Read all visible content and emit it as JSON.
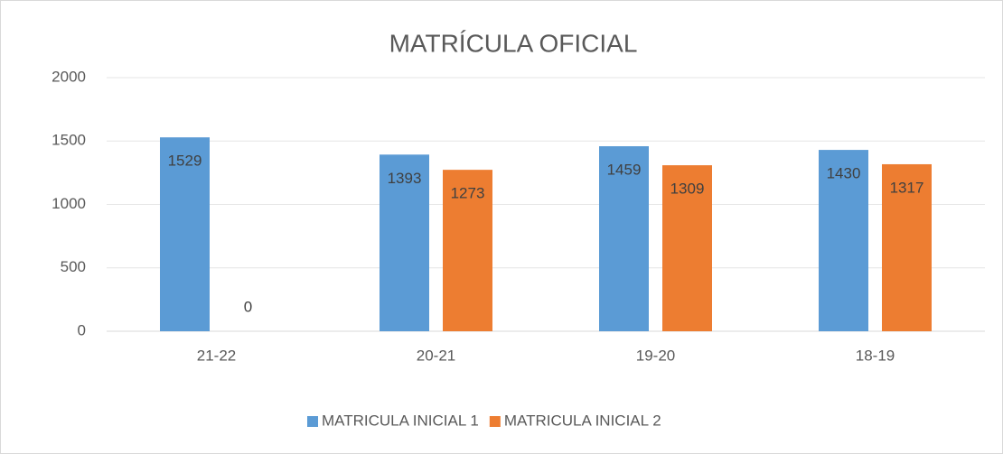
{
  "chart_data": {
    "type": "bar",
    "title": "MATRÍCULA OFICIAL",
    "categories": [
      "21-22",
      "20-21",
      "19-20",
      "18-19"
    ],
    "series": [
      {
        "name": "MATRICULA INICIAL 1",
        "color": "#5b9bd5",
        "values": [
          1529,
          1393,
          1459,
          1430
        ]
      },
      {
        "name": "MATRICULA INICIAL 2",
        "color": "#ed7d31",
        "values": [
          0,
          1273,
          1309,
          1317
        ]
      }
    ],
    "ylim": [
      0,
      2000
    ],
    "yticks": [
      0,
      500,
      1000,
      1500,
      2000
    ],
    "grid": true,
    "legend": "bottom"
  }
}
